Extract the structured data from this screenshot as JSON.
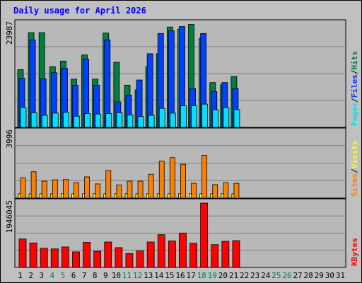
{
  "title": "Daily usage for April 2026",
  "colors": {
    "background": "#C0C0C0",
    "plot_bg": "#B8B8B8",
    "title": "#0000FF",
    "hits": "#008040",
    "files": "#0040FF",
    "pages": "#00E0FF",
    "visits": "#FFFF00",
    "sites": "#FF8000",
    "kbytes": "#FF0000",
    "weekend_label": "#008040",
    "weekday_label": "#000000"
  },
  "chart_data": [
    {
      "type": "bar",
      "panel": "top",
      "ymax_label": "23987",
      "ylim": [
        0,
        23987
      ],
      "categories": [
        "1",
        "2",
        "3",
        "4",
        "5",
        "6",
        "7",
        "8",
        "9",
        "10",
        "11",
        "12",
        "13",
        "14",
        "15",
        "16",
        "17",
        "18",
        "19",
        "20",
        "21",
        "22",
        "23",
        "24",
        "25",
        "26",
        "27",
        "28",
        "29",
        "30",
        "31"
      ],
      "series": [
        {
          "name": "Hits",
          "values": [
            13400,
            22000,
            22000,
            14100,
            15400,
            11200,
            16800,
            11200,
            21900,
            15100,
            9800,
            8700,
            14100,
            17100,
            23300,
            22800,
            23900,
            20700,
            10400,
            9900,
            11800,
            0,
            0,
            0,
            0,
            0,
            0,
            0,
            0,
            0,
            0
          ]
        },
        {
          "name": "Files",
          "values": [
            11400,
            20300,
            11300,
            12700,
            13700,
            9800,
            15800,
            9800,
            20300,
            5900,
            7500,
            11000,
            17100,
            21800,
            22400,
            23400,
            9000,
            21800,
            8300,
            10400,
            9000,
            0,
            0,
            0,
            0,
            0,
            0,
            0,
            0,
            0,
            0
          ]
        },
        {
          "name": "Pages",
          "values": [
            4600,
            3400,
            2800,
            3300,
            3500,
            2600,
            3200,
            3100,
            3200,
            3400,
            2900,
            2500,
            2800,
            4400,
            3300,
            5000,
            5000,
            5400,
            4100,
            4600,
            4100,
            0,
            0,
            0,
            0,
            0,
            0,
            0,
            0,
            0,
            0
          ]
        }
      ],
      "legend": [
        "Pages",
        "Files",
        "Hits"
      ]
    },
    {
      "type": "bar",
      "panel": "middle",
      "ymax_label": "3996",
      "ylim": [
        0,
        3996
      ],
      "series": [
        {
          "name": "Visits",
          "values": [
            260,
            260,
            260,
            260,
            260,
            260,
            260,
            260,
            260,
            260,
            260,
            260,
            260,
            260,
            260,
            260,
            260,
            260,
            260,
            260,
            260,
            0,
            0,
            0,
            0,
            0,
            0,
            0,
            0,
            0,
            0
          ]
        },
        {
          "name": "Sites",
          "values": [
            1240,
            1600,
            1030,
            1110,
            1130,
            940,
            1290,
            860,
            1680,
            800,
            1030,
            1030,
            1450,
            2240,
            2460,
            2060,
            900,
            2600,
            820,
            940,
            900,
            0,
            0,
            0,
            0,
            0,
            0,
            0,
            0,
            0,
            0
          ]
        }
      ],
      "legend": [
        "Sites",
        "Visits"
      ]
    },
    {
      "type": "bar",
      "panel": "bottom",
      "ymax_label": "1946045",
      "ylim": [
        0,
        1946045
      ],
      "series": [
        {
          "name": "KBytes",
          "values": [
            860000,
            740000,
            580000,
            560000,
            620000,
            470000,
            760000,
            490000,
            770000,
            600000,
            420000,
            500000,
            770000,
            990000,
            800000,
            1040000,
            730000,
            1946045,
            690000,
            790000,
            810000,
            0,
            0,
            0,
            0,
            0,
            0,
            0,
            0,
            0,
            0
          ]
        }
      ],
      "legend": [
        "KBytes"
      ]
    }
  ],
  "weekend_days": [
    4,
    5,
    11,
    12,
    18,
    19,
    25,
    26
  ]
}
